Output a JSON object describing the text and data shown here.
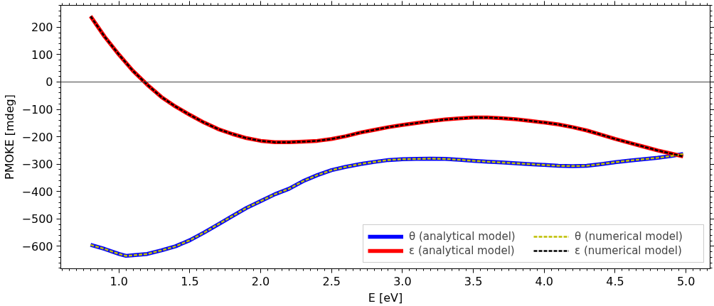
{
  "chart_data": {
    "type": "line",
    "xlabel": "E [eV]",
    "ylabel": "PMOKE [mdeg]",
    "x": [
      0.8,
      0.9,
      1.0,
      1.05,
      1.1,
      1.2,
      1.3,
      1.4,
      1.5,
      1.6,
      1.7,
      1.8,
      1.9,
      2.0,
      2.1,
      2.2,
      2.3,
      2.4,
      2.5,
      2.6,
      2.7,
      2.8,
      2.9,
      3.0,
      3.1,
      3.2,
      3.3,
      3.4,
      3.5,
      3.6,
      3.7,
      3.8,
      3.9,
      4.0,
      4.1,
      4.2,
      4.3,
      4.4,
      4.5,
      4.6,
      4.7,
      4.8,
      4.9,
      4.98
    ],
    "series": [
      {
        "name": "θ (analytical model)",
        "color": "#0000ff",
        "line_style": "solid",
        "values": [
          -595,
          -610,
          -628,
          -635,
          -633,
          -628,
          -615,
          -600,
          -578,
          -550,
          -520,
          -490,
          -460,
          -435,
          -410,
          -390,
          -362,
          -340,
          -322,
          -310,
          -300,
          -292,
          -285,
          -282,
          -281,
          -280,
          -281,
          -284,
          -288,
          -291,
          -294,
          -297,
          -300,
          -303,
          -306,
          -307,
          -306,
          -300,
          -293,
          -287,
          -282,
          -277,
          -270,
          -263
        ]
      },
      {
        "name": "ε (analytical model)",
        "color": "#ff0000",
        "line_style": "solid",
        "values": [
          240,
          165,
          100,
          70,
          40,
          -10,
          -55,
          -90,
          -120,
          -148,
          -172,
          -190,
          -205,
          -215,
          -220,
          -220,
          -218,
          -215,
          -208,
          -198,
          -185,
          -175,
          -165,
          -157,
          -150,
          -143,
          -137,
          -133,
          -130,
          -130,
          -132,
          -136,
          -142,
          -148,
          -155,
          -165,
          -177,
          -192,
          -208,
          -222,
          -236,
          -250,
          -262,
          -272
        ]
      },
      {
        "name": "θ (numerical model)",
        "color": "#bfbf00",
        "line_style": "dashed",
        "values": [
          -595,
          -610,
          -628,
          -635,
          -633,
          -628,
          -615,
          -600,
          -578,
          -550,
          -520,
          -490,
          -460,
          -435,
          -410,
          -390,
          -362,
          -340,
          -322,
          -310,
          -300,
          -292,
          -285,
          -282,
          -281,
          -280,
          -281,
          -284,
          -288,
          -291,
          -294,
          -297,
          -300,
          -303,
          -306,
          -307,
          -306,
          -300,
          -293,
          -287,
          -282,
          -277,
          -270,
          -263
        ]
      },
      {
        "name": "ε (numerical model)",
        "color": "#000000",
        "line_style": "dashed",
        "values": [
          240,
          165,
          100,
          70,
          40,
          -10,
          -55,
          -90,
          -120,
          -148,
          -172,
          -190,
          -205,
          -215,
          -220,
          -220,
          -218,
          -215,
          -208,
          -198,
          -185,
          -175,
          -165,
          -157,
          -150,
          -143,
          -137,
          -133,
          -130,
          -130,
          -132,
          -136,
          -142,
          -148,
          -155,
          -165,
          -177,
          -192,
          -208,
          -222,
          -236,
          -250,
          -262,
          -272
        ]
      }
    ],
    "xlim": [
      0.59,
      5.17
    ],
    "ylim": [
      -682,
      280
    ],
    "xticks": [
      {
        "value": 1,
        "label": "1.0"
      },
      1.5,
      {
        "value": 2,
        "label": "2.0"
      },
      2.5,
      {
        "value": 3,
        "label": "3.0"
      },
      3.5,
      {
        "value": 4,
        "label": "4.0"
      },
      4.5,
      {
        "value": 5,
        "label": "5.0"
      }
    ],
    "yticks": [
      -600,
      -500,
      -400,
      -300,
      -200,
      -100,
      0,
      100,
      200
    ],
    "ref_lines": [
      {
        "axis": "y",
        "value": 0,
        "color": "#444444"
      }
    ],
    "grid": false,
    "legend": "bottom right"
  }
}
